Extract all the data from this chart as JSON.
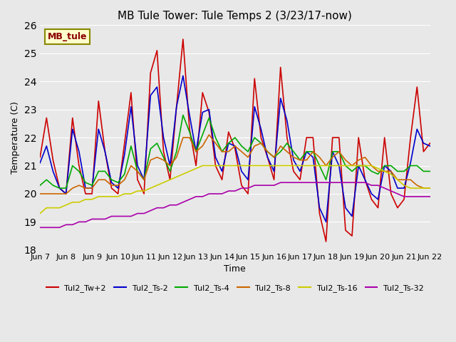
{
  "title": "MB Tule Tower: Tule Temps 2 (3/23/17-now)",
  "xlabel": "Time",
  "ylabel": "Temperature (C)",
  "ylim": [
    18.0,
    26.0
  ],
  "yticks": [
    18.0,
    19.0,
    20.0,
    21.0,
    22.0,
    23.0,
    24.0,
    25.0,
    26.0
  ],
  "xlim": [
    0,
    15
  ],
  "xtick_labels": [
    "Jun 7",
    "Jun 8",
    "Jun 9",
    "Jun 10",
    "Jun 11",
    "Jun 12",
    "Jun 13",
    "Jun 14",
    "Jun 15",
    "Jun 16",
    "Jun 17",
    "Jun 18",
    "Jun 19",
    "Jun 20",
    "Jun 21",
    "Jun 22"
  ],
  "background_color": "#e8e8e8",
  "plot_bg_color": "#e8e8e8",
  "legend_label": "MB_tule",
  "legend_box_color": "#ffffcc",
  "legend_text_color": "#8b0000",
  "series": [
    {
      "name": "Tul2_Tw+2",
      "color": "#cc0000",
      "x": [
        0,
        0.25,
        0.5,
        0.75,
        1.0,
        1.25,
        1.5,
        1.75,
        2.0,
        2.25,
        2.5,
        2.75,
        3.0,
        3.25,
        3.5,
        3.75,
        4.0,
        4.25,
        4.5,
        4.75,
        5.0,
        5.25,
        5.5,
        5.75,
        6.0,
        6.25,
        6.5,
        6.75,
        7.0,
        7.25,
        7.5,
        7.75,
        8.0,
        8.25,
        8.5,
        8.75,
        9.0,
        9.25,
        9.5,
        9.75,
        10.0,
        10.25,
        10.5,
        10.75,
        11.0,
        11.25,
        11.5,
        11.75,
        12.0,
        12.25,
        12.5,
        12.75,
        13.0,
        13.25,
        13.5,
        13.75,
        14.0,
        14.25,
        14.5,
        14.75,
        15.0
      ],
      "y": [
        21.3,
        22.7,
        21.2,
        20.2,
        20.0,
        22.7,
        21.0,
        20.0,
        20.0,
        23.3,
        21.5,
        20.2,
        20.0,
        21.8,
        23.6,
        20.5,
        20.0,
        24.3,
        25.1,
        21.5,
        20.5,
        23.1,
        25.5,
        22.3,
        21.0,
        23.6,
        22.9,
        21.0,
        20.5,
        22.2,
        21.6,
        20.3,
        20.0,
        24.1,
        22.0,
        21.3,
        20.5,
        24.5,
        22.0,
        20.8,
        20.5,
        22.0,
        22.0,
        19.3,
        18.3,
        22.0,
        22.0,
        18.7,
        18.5,
        22.0,
        20.5,
        19.8,
        19.5,
        22.0,
        20.0,
        19.5,
        19.8,
        22.0,
        23.8,
        21.5,
        21.8
      ]
    },
    {
      "name": "Tul2_Ts-2",
      "color": "#0000cc",
      "x": [
        0,
        0.25,
        0.5,
        0.75,
        1.0,
        1.25,
        1.5,
        1.75,
        2.0,
        2.25,
        2.5,
        2.75,
        3.0,
        3.25,
        3.5,
        3.75,
        4.0,
        4.25,
        4.5,
        4.75,
        5.0,
        5.25,
        5.5,
        5.75,
        6.0,
        6.25,
        6.5,
        6.75,
        7.0,
        7.25,
        7.5,
        7.75,
        8.0,
        8.25,
        8.5,
        8.75,
        9.0,
        9.25,
        9.5,
        9.75,
        10.0,
        10.25,
        10.5,
        10.75,
        11.0,
        11.25,
        11.5,
        11.75,
        12.0,
        12.25,
        12.5,
        12.75,
        13.0,
        13.25,
        13.5,
        13.75,
        14.0,
        14.25,
        14.5,
        14.75,
        15.0
      ],
      "y": [
        21.1,
        21.7,
        20.8,
        20.2,
        20.0,
        22.3,
        21.5,
        20.2,
        20.2,
        22.3,
        21.5,
        20.4,
        20.2,
        21.4,
        23.1,
        21.0,
        20.5,
        23.5,
        23.8,
        22.0,
        21.0,
        23.1,
        24.2,
        22.8,
        21.5,
        22.9,
        23.0,
        21.3,
        20.8,
        21.8,
        21.7,
        20.8,
        20.5,
        23.1,
        22.3,
        21.3,
        20.8,
        23.4,
        22.6,
        21.2,
        20.8,
        21.5,
        21.3,
        19.5,
        19.0,
        21.5,
        21.0,
        19.5,
        19.2,
        21.0,
        20.5,
        20.0,
        19.8,
        21.0,
        20.8,
        20.2,
        20.2,
        21.1,
        22.3,
        21.8,
        21.7
      ]
    },
    {
      "name": "Tul2_Ts-4",
      "color": "#00aa00",
      "x": [
        0,
        0.25,
        0.5,
        0.75,
        1.0,
        1.25,
        1.5,
        1.75,
        2.0,
        2.25,
        2.5,
        2.75,
        3.0,
        3.25,
        3.5,
        3.75,
        4.0,
        4.25,
        4.5,
        4.75,
        5.0,
        5.25,
        5.5,
        5.75,
        6.0,
        6.25,
        6.5,
        6.75,
        7.0,
        7.25,
        7.5,
        7.75,
        8.0,
        8.25,
        8.5,
        8.75,
        9.0,
        9.25,
        9.5,
        9.75,
        10.0,
        10.25,
        10.5,
        10.75,
        11.0,
        11.25,
        11.5,
        11.75,
        12.0,
        12.25,
        12.5,
        12.75,
        13.0,
        13.25,
        13.5,
        13.75,
        14.0,
        14.25,
        14.5,
        14.75,
        15.0
      ],
      "y": [
        20.3,
        20.5,
        20.3,
        20.2,
        20.2,
        21.0,
        20.8,
        20.4,
        20.3,
        20.8,
        20.8,
        20.5,
        20.4,
        20.7,
        21.7,
        20.8,
        20.5,
        21.6,
        21.8,
        21.3,
        20.8,
        21.5,
        22.8,
        22.2,
        21.5,
        22.1,
        22.7,
        22.0,
        21.5,
        21.8,
        22.0,
        21.7,
        21.5,
        22.0,
        21.8,
        21.5,
        21.3,
        21.5,
        21.8,
        21.5,
        21.2,
        21.5,
        21.5,
        21.0,
        20.5,
        21.5,
        21.5,
        21.0,
        20.8,
        21.0,
        21.0,
        20.8,
        20.7,
        21.0,
        21.0,
        20.8,
        20.8,
        21.0,
        21.0,
        20.8,
        20.8
      ]
    },
    {
      "name": "Tul2_Ts-8",
      "color": "#cc6600",
      "x": [
        0,
        0.25,
        0.5,
        0.75,
        1.0,
        1.25,
        1.5,
        1.75,
        2.0,
        2.25,
        2.5,
        2.75,
        3.0,
        3.25,
        3.5,
        3.75,
        4.0,
        4.25,
        4.5,
        4.75,
        5.0,
        5.25,
        5.5,
        5.75,
        6.0,
        6.25,
        6.5,
        6.75,
        7.0,
        7.25,
        7.5,
        7.75,
        8.0,
        8.25,
        8.5,
        8.75,
        9.0,
        9.25,
        9.5,
        9.75,
        10.0,
        10.25,
        10.5,
        10.75,
        11.0,
        11.25,
        11.5,
        11.75,
        12.0,
        12.25,
        12.5,
        12.75,
        13.0,
        13.25,
        13.5,
        13.75,
        14.0,
        14.25,
        14.5,
        14.75,
        15.0
      ],
      "y": [
        20.0,
        20.0,
        20.0,
        20.0,
        20.0,
        20.2,
        20.3,
        20.2,
        20.2,
        20.5,
        20.5,
        20.3,
        20.3,
        20.5,
        21.0,
        20.8,
        20.5,
        21.2,
        21.3,
        21.2,
        21.0,
        21.3,
        22.0,
        22.0,
        21.5,
        21.7,
        22.1,
        21.8,
        21.5,
        21.5,
        21.7,
        21.5,
        21.3,
        21.7,
        21.8,
        21.5,
        21.3,
        21.7,
        21.5,
        21.3,
        21.2,
        21.2,
        21.5,
        21.3,
        21.0,
        21.3,
        21.5,
        21.2,
        21.0,
        21.2,
        21.3,
        21.0,
        20.8,
        20.8,
        20.8,
        20.5,
        20.5,
        20.5,
        20.3,
        20.2,
        20.2
      ]
    },
    {
      "name": "Tul2_Ts-16",
      "color": "#cccc00",
      "x": [
        0,
        0.25,
        0.5,
        0.75,
        1.0,
        1.25,
        1.5,
        1.75,
        2.0,
        2.25,
        2.5,
        2.75,
        3.0,
        3.25,
        3.5,
        3.75,
        4.0,
        4.25,
        4.5,
        4.75,
        5.0,
        5.25,
        5.5,
        5.75,
        6.0,
        6.25,
        6.5,
        6.75,
        7.0,
        7.25,
        7.5,
        7.75,
        8.0,
        8.25,
        8.5,
        8.75,
        9.0,
        9.25,
        9.5,
        9.75,
        10.0,
        10.25,
        10.5,
        10.75,
        11.0,
        11.25,
        11.5,
        11.75,
        12.0,
        12.25,
        12.5,
        12.75,
        13.0,
        13.25,
        13.5,
        13.75,
        14.0,
        14.25,
        14.5,
        14.75,
        15.0
      ],
      "y": [
        19.3,
        19.5,
        19.5,
        19.5,
        19.6,
        19.7,
        19.7,
        19.8,
        19.8,
        19.9,
        19.9,
        19.9,
        19.9,
        20.0,
        20.0,
        20.1,
        20.1,
        20.2,
        20.3,
        20.4,
        20.5,
        20.6,
        20.7,
        20.8,
        20.9,
        21.0,
        21.0,
        21.0,
        21.0,
        21.0,
        21.0,
        21.0,
        21.0,
        21.0,
        21.0,
        21.0,
        21.0,
        21.0,
        21.0,
        21.0,
        21.0,
        21.0,
        21.0,
        21.0,
        21.0,
        21.0,
        21.0,
        21.0,
        21.0,
        21.0,
        21.0,
        21.0,
        20.9,
        20.8,
        20.7,
        20.5,
        20.3,
        20.2,
        20.2,
        20.2,
        20.2
      ]
    },
    {
      "name": "Tul2_Ts-32",
      "color": "#aa00aa",
      "x": [
        0,
        0.25,
        0.5,
        0.75,
        1.0,
        1.25,
        1.5,
        1.75,
        2.0,
        2.25,
        2.5,
        2.75,
        3.0,
        3.25,
        3.5,
        3.75,
        4.0,
        4.25,
        4.5,
        4.75,
        5.0,
        5.25,
        5.5,
        5.75,
        6.0,
        6.25,
        6.5,
        6.75,
        7.0,
        7.25,
        7.5,
        7.75,
        8.0,
        8.25,
        8.5,
        8.75,
        9.0,
        9.25,
        9.5,
        9.75,
        10.0,
        10.25,
        10.5,
        10.75,
        11.0,
        11.25,
        11.5,
        11.75,
        12.0,
        12.25,
        12.5,
        12.75,
        13.0,
        13.25,
        13.5,
        13.75,
        14.0,
        14.25,
        14.5,
        14.75,
        15.0
      ],
      "y": [
        18.8,
        18.8,
        18.8,
        18.8,
        18.9,
        18.9,
        19.0,
        19.0,
        19.1,
        19.1,
        19.1,
        19.2,
        19.2,
        19.2,
        19.2,
        19.3,
        19.3,
        19.4,
        19.5,
        19.5,
        19.6,
        19.6,
        19.7,
        19.8,
        19.9,
        19.9,
        20.0,
        20.0,
        20.0,
        20.1,
        20.1,
        20.2,
        20.2,
        20.3,
        20.3,
        20.3,
        20.3,
        20.4,
        20.4,
        20.4,
        20.4,
        20.4,
        20.4,
        20.4,
        20.4,
        20.4,
        20.4,
        20.4,
        20.4,
        20.4,
        20.4,
        20.3,
        20.3,
        20.2,
        20.1,
        20.0,
        19.9,
        19.9,
        19.9,
        19.9,
        19.9
      ]
    }
  ]
}
